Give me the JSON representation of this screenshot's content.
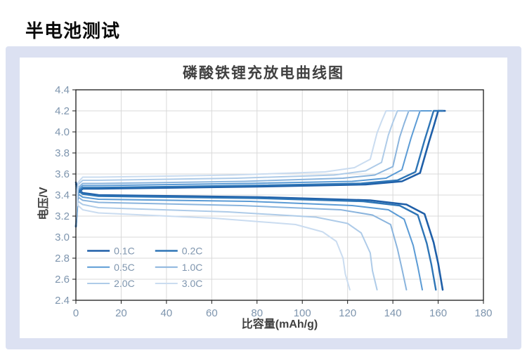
{
  "page": {
    "title": "半电池测试"
  },
  "colors": {
    "panel_bg": "#dce1f2",
    "axis_text": "#7e95ae",
    "title_text": "#404040"
  },
  "chart_data": {
    "type": "line",
    "title": "磷酸铁锂充放电曲线图",
    "xlabel": "比容量(mAh/g)",
    "ylabel": "电压/V",
    "xlim": [
      0,
      180
    ],
    "ylim": [
      2.4,
      4.4
    ],
    "xticks": [
      0,
      20,
      40,
      60,
      80,
      100,
      120,
      140,
      160,
      180
    ],
    "yticks": [
      2.4,
      2.6,
      2.8,
      3.0,
      3.2,
      3.4,
      3.6,
      3.8,
      4.0,
      4.2,
      4.4
    ],
    "grid": true,
    "legend_position": "lower-left",
    "series": [
      {
        "name": "0.1C",
        "color": "#1f5fa8",
        "line_width": 2.6,
        "charge": [
          [
            0,
            3.1
          ],
          [
            1,
            3.42
          ],
          [
            3,
            3.46
          ],
          [
            10,
            3.46
          ],
          [
            80,
            3.48
          ],
          [
            128,
            3.5
          ],
          [
            144,
            3.53
          ],
          [
            152,
            3.61
          ],
          [
            156,
            3.91
          ],
          [
            158,
            4.05
          ],
          [
            160,
            4.2
          ],
          [
            163,
            4.2
          ]
        ],
        "discharge": [
          [
            0,
            3.52
          ],
          [
            1,
            3.45
          ],
          [
            3,
            3.42
          ],
          [
            10,
            3.4
          ],
          [
            81,
            3.38
          ],
          [
            130,
            3.35
          ],
          [
            146,
            3.31
          ],
          [
            154,
            3.22
          ],
          [
            158,
            2.95
          ],
          [
            160,
            2.75
          ],
          [
            162,
            2.5
          ]
        ]
      },
      {
        "name": "0.2C",
        "color": "#2e75b6",
        "line_width": 2.4,
        "charge": [
          [
            0,
            3.1
          ],
          [
            1,
            3.43
          ],
          [
            3,
            3.47
          ],
          [
            10,
            3.47
          ],
          [
            79,
            3.49
          ],
          [
            126,
            3.51
          ],
          [
            142,
            3.54
          ],
          [
            150,
            3.62
          ],
          [
            154,
            3.92
          ],
          [
            156,
            4.06
          ],
          [
            158,
            4.2
          ],
          [
            162,
            4.2
          ]
        ],
        "discharge": [
          [
            0,
            3.5
          ],
          [
            1,
            3.44
          ],
          [
            3,
            3.41
          ],
          [
            10,
            3.39
          ],
          [
            80,
            3.37
          ],
          [
            127,
            3.34
          ],
          [
            143,
            3.3
          ],
          [
            151,
            3.21
          ],
          [
            155,
            2.94
          ],
          [
            157,
            2.74
          ],
          [
            159,
            2.5
          ]
        ]
      },
      {
        "name": "0.5C",
        "color": "#5b9bd5",
        "line_width": 2,
        "charge": [
          [
            0,
            3.12
          ],
          [
            1,
            3.45
          ],
          [
            3,
            3.49
          ],
          [
            10,
            3.49
          ],
          [
            76,
            3.51
          ],
          [
            122,
            3.53
          ],
          [
            137,
            3.56
          ],
          [
            144,
            3.64
          ],
          [
            148,
            3.94
          ],
          [
            150,
            4.07
          ],
          [
            152,
            4.2
          ],
          [
            157,
            4.2
          ]
        ],
        "discharge": [
          [
            0,
            3.48
          ],
          [
            1,
            3.41
          ],
          [
            3,
            3.38
          ],
          [
            10,
            3.36
          ],
          [
            77,
            3.34
          ],
          [
            122,
            3.3
          ],
          [
            138,
            3.26
          ],
          [
            145,
            3.17
          ],
          [
            149,
            2.92
          ],
          [
            151,
            2.72
          ],
          [
            153,
            2.5
          ]
        ]
      },
      {
        "name": "1.0C",
        "color": "#8ab4dd",
        "line_width": 2,
        "charge": [
          [
            0,
            3.14
          ],
          [
            1,
            3.47
          ],
          [
            3,
            3.51
          ],
          [
            10,
            3.51
          ],
          [
            74,
            3.53
          ],
          [
            118,
            3.56
          ],
          [
            132,
            3.59
          ],
          [
            140,
            3.67
          ],
          [
            143,
            3.95
          ],
          [
            145,
            4.08
          ],
          [
            147,
            4.2
          ],
          [
            152,
            4.2
          ]
        ],
        "discharge": [
          [
            0,
            3.46
          ],
          [
            1,
            3.38
          ],
          [
            3,
            3.35
          ],
          [
            10,
            3.33
          ],
          [
            73,
            3.3
          ],
          [
            117,
            3.26
          ],
          [
            131,
            3.21
          ],
          [
            139,
            3.12
          ],
          [
            142,
            2.89
          ],
          [
            144,
            2.7
          ],
          [
            146,
            2.5
          ]
        ]
      },
      {
        "name": "2.0C",
        "color": "#aecbe8",
        "line_width": 2,
        "charge": [
          [
            0,
            3.16
          ],
          [
            1,
            3.5
          ],
          [
            3,
            3.54
          ],
          [
            10,
            3.54
          ],
          [
            71,
            3.56
          ],
          [
            114,
            3.59
          ],
          [
            128,
            3.63
          ],
          [
            135,
            3.71
          ],
          [
            138,
            3.97
          ],
          [
            140,
            4.09
          ],
          [
            142,
            4.2
          ],
          [
            147,
            4.2
          ]
        ],
        "discharge": [
          [
            0,
            3.43
          ],
          [
            1,
            3.34
          ],
          [
            3,
            3.31
          ],
          [
            10,
            3.28
          ],
          [
            67,
            3.24
          ],
          [
            106,
            3.19
          ],
          [
            120,
            3.13
          ],
          [
            126,
            3.04
          ],
          [
            130,
            2.85
          ],
          [
            131,
            2.68
          ],
          [
            133,
            2.5
          ]
        ]
      },
      {
        "name": "3.0C",
        "color": "#cadcf0",
        "line_width": 2,
        "charge": [
          [
            0,
            3.18
          ],
          [
            1,
            3.52
          ],
          [
            3,
            3.57
          ],
          [
            10,
            3.57
          ],
          [
            69,
            3.59
          ],
          [
            110,
            3.62
          ],
          [
            123,
            3.66
          ],
          [
            130,
            3.74
          ],
          [
            133,
            3.99
          ],
          [
            135,
            4.1
          ],
          [
            137,
            4.2
          ],
          [
            141,
            4.2
          ]
        ],
        "discharge": [
          [
            0,
            3.4
          ],
          [
            1,
            3.3
          ],
          [
            3,
            3.26
          ],
          [
            10,
            3.23
          ],
          [
            61,
            3.18
          ],
          [
            97,
            3.12
          ],
          [
            109,
            3.05
          ],
          [
            115,
            2.96
          ],
          [
            118,
            2.8
          ],
          [
            119,
            2.65
          ],
          [
            121,
            2.5
          ]
        ]
      }
    ]
  }
}
